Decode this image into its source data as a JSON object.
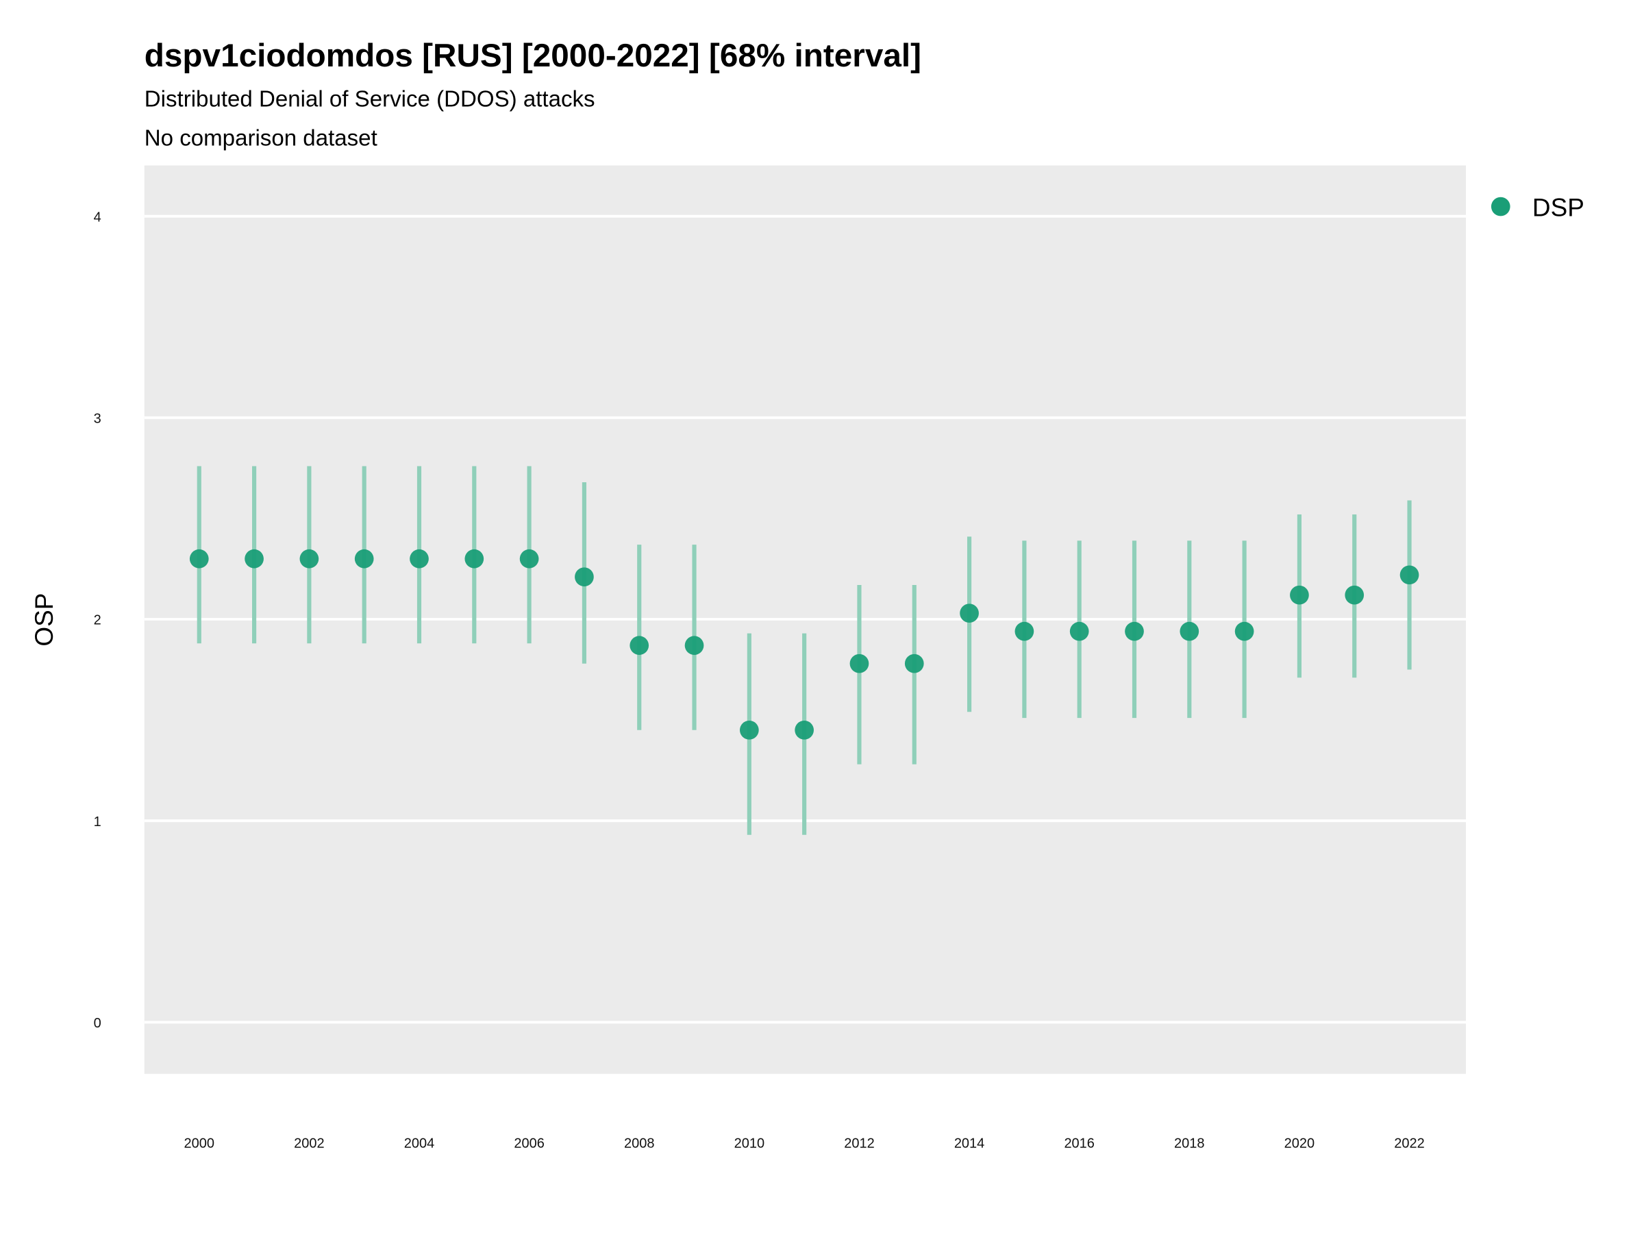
{
  "chart_data": {
    "type": "scatter",
    "title": "dspv1ciodomdos [RUS] [2000-2022] [68% interval]",
    "subtitle": "Distributed Denial of Service (DDOS) attacks",
    "caption_line": "No comparison dataset",
    "xlabel": "",
    "ylabel": "OSP",
    "ylim": [
      -0.25,
      4.25
    ],
    "yticks": [
      "0",
      "1",
      "2",
      "3",
      "4"
    ],
    "xticks": [
      "2000",
      "2002",
      "2004",
      "2006",
      "2008",
      "2010",
      "2012",
      "2014",
      "2016",
      "2018",
      "2020",
      "2022"
    ],
    "grid": true,
    "legend": {
      "position": "right",
      "entries": [
        "DSP"
      ]
    },
    "colors": {
      "point": "#1a9e77",
      "interval": "#8fcfb9",
      "panel": "#ebebeb",
      "grid": "#ffffff"
    },
    "series": [
      {
        "name": "DSP",
        "x": [
          2000,
          2001,
          2002,
          2003,
          2004,
          2005,
          2006,
          2007,
          2008,
          2009,
          2010,
          2011,
          2012,
          2013,
          2014,
          2015,
          2016,
          2017,
          2018,
          2019,
          2020,
          2021,
          2022
        ],
        "y": [
          2.3,
          2.3,
          2.3,
          2.3,
          2.3,
          2.3,
          2.3,
          2.21,
          1.87,
          1.87,
          1.45,
          1.45,
          1.78,
          1.78,
          2.03,
          1.94,
          1.94,
          1.94,
          1.94,
          1.94,
          2.12,
          2.12,
          2.22
        ],
        "low": [
          1.88,
          1.88,
          1.88,
          1.88,
          1.88,
          1.88,
          1.88,
          1.78,
          1.45,
          1.45,
          0.93,
          0.93,
          1.28,
          1.28,
          1.54,
          1.51,
          1.51,
          1.51,
          1.51,
          1.51,
          1.71,
          1.71,
          1.75
        ],
        "high": [
          2.76,
          2.76,
          2.76,
          2.76,
          2.76,
          2.76,
          2.76,
          2.68,
          2.37,
          2.37,
          1.93,
          1.93,
          2.17,
          2.17,
          2.41,
          2.39,
          2.39,
          2.39,
          2.39,
          2.39,
          2.52,
          2.52,
          2.59
        ]
      }
    ]
  }
}
